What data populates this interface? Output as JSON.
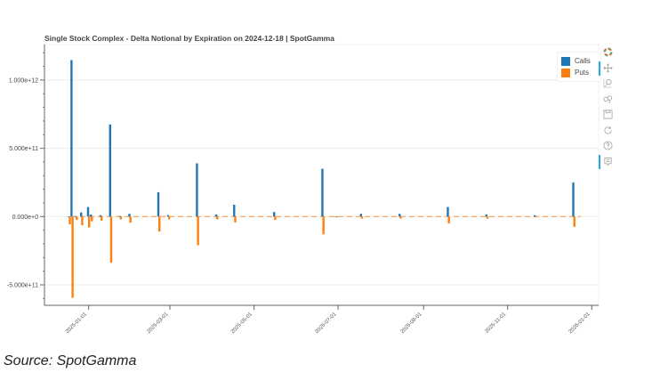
{
  "chart_data": {
    "type": "bar",
    "title": "Single Stock Complex - Delta Notional by Expiration on 2024-12-18 | SpotGamma",
    "xlabel": "",
    "ylabel": "",
    "xlim": [
      "2024-11-30",
      "2026-01-06"
    ],
    "ylim": [
      -650000000000.0,
      1260000000000.0
    ],
    "x_ticks": [
      "2025-01-01",
      "2025-03-01",
      "2025-05-01",
      "2025-07-01",
      "2025-09-01",
      "2025-11-01",
      "2026-01-01"
    ],
    "y_ticks": [
      {
        "value": 1000000000000.0,
        "label": "1.000e+12"
      },
      {
        "value": 500000000000.0,
        "label": "5.000e+11"
      },
      {
        "value": 0,
        "label": "0.000e+0"
      },
      {
        "value": -500000000000.0,
        "label": "-5.000e+11"
      }
    ],
    "grid": true,
    "legend_position": "top-right",
    "colors": {
      "Calls": "#1f77b4",
      "Puts": "#ff7f0e"
    },
    "categories": [
      "2024-12-18",
      "2024-12-20",
      "2024-12-23",
      "2024-12-27",
      "2025-01-01",
      "2025-01-03",
      "2025-01-10",
      "2025-01-17",
      "2025-01-24",
      "2025-01-31",
      "2025-02-21",
      "2025-02-28",
      "2025-03-21",
      "2025-04-04",
      "2025-04-17",
      "2025-05-16",
      "2025-06-20",
      "2025-06-30",
      "2025-07-18",
      "2025-08-15",
      "2025-09-19",
      "2025-10-17",
      "2025-11-21",
      "2025-12-19"
    ],
    "series": [
      {
        "name": "Calls",
        "values": [
          2000000000.0,
          1146000000000.0,
          3000000000.0,
          30000000000.0,
          70000000000.0,
          15000000000.0,
          10000000000.0,
          675000000000.0,
          5000000000.0,
          20000000000.0,
          178000000000.0,
          10000000000.0,
          390000000000.0,
          15000000000.0,
          87000000000.0,
          33000000000.0,
          350000000000.0,
          2000000000.0,
          20000000000.0,
          20000000000.0,
          70000000000.0,
          15000000000.0,
          10000000000.0,
          250000000000.0
        ]
      },
      {
        "name": "Puts",
        "values": [
          -57000000000.0,
          -595000000000.0,
          -24000000000.0,
          -63000000000.0,
          -80000000000.0,
          -35000000000.0,
          -30000000000.0,
          -338000000000.0,
          -20000000000.0,
          -45000000000.0,
          -110000000000.0,
          -20000000000.0,
          -210000000000.0,
          -20000000000.0,
          -43000000000.0,
          -25000000000.0,
          -130000000000.0,
          -5000000000.0,
          -15000000000.0,
          -15000000000.0,
          -50000000000.0,
          -15000000000.0,
          -3000000000.0,
          -75000000000.0
        ]
      }
    ]
  },
  "legend": {
    "calls": "Calls",
    "puts": "Puts"
  },
  "caption": "Source: SpotGamma",
  "toolbar": [
    "bokeh-logo",
    "pan",
    "box-zoom",
    "wheel-zoom",
    "save",
    "reset",
    "help",
    "hover"
  ]
}
